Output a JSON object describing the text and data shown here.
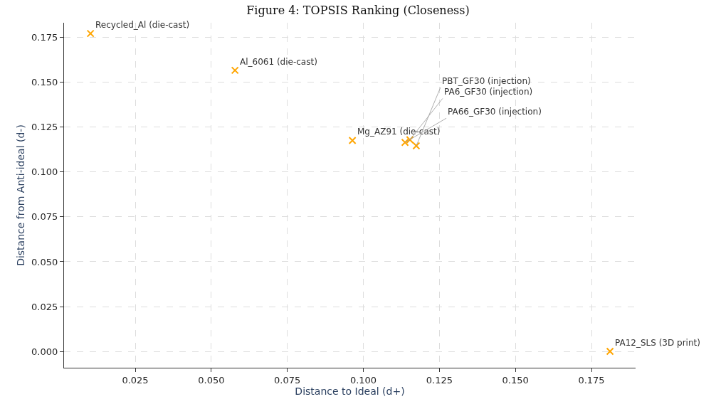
{
  "chart_data": {
    "type": "scatter",
    "title": "Figure 4: TOPSIS Ranking (Closeness)",
    "xlabel": "Distance to Ideal (d+)",
    "ylabel": "Distance from Anti-ideal (d-)",
    "x": [
      0.0103,
      0.0578,
      0.0964,
      0.1137,
      0.1153,
      0.1174,
      0.1811
    ],
    "series": [
      {
        "color": "#ffa500",
        "values": [
          0.1772,
          0.1567,
          0.1176,
          0.1165,
          0.118,
          0.1146,
          0.0
        ]
      }
    ],
    "annotations": [
      {
        "text": "Recycled_Al (die-cast)",
        "x": 0.0103,
        "y": 0.1772
      },
      {
        "text": "Al_6061 (die-cast)",
        "x": 0.0578,
        "y": 0.1567
      },
      {
        "text": "Mg_AZ91 (die-cast)",
        "x": 0.0964,
        "y": 0.1176
      },
      {
        "text": "PA66_GF30 (injection)",
        "x": 0.1137,
        "y": 0.1165
      },
      {
        "text": "PA6_GF30 (injection)",
        "x": 0.1153,
        "y": 0.118
      },
      {
        "text": "PBT_GF30 (injection)",
        "x": 0.1174,
        "y": 0.1146
      },
      {
        "text": "PA12_SLS (3D print)",
        "x": 0.1811,
        "y": 0.0
      }
    ],
    "xlim": [
      0.0016,
      0.1895
    ],
    "ylim": [
      -0.0091,
      0.1832
    ],
    "xticks": [
      {
        "value": 0.025,
        "label": "0.025"
      },
      {
        "value": 0.05,
        "label": "0.050"
      },
      {
        "value": 0.075,
        "label": "0.075"
      },
      {
        "value": 0.1,
        "label": "0.100"
      },
      {
        "value": 0.125,
        "label": "0.125"
      },
      {
        "value": 0.15,
        "label": "0.150"
      },
      {
        "value": 0.175,
        "label": "0.175"
      }
    ],
    "yticks": [
      {
        "value": 0.0,
        "label": "0.000"
      },
      {
        "value": 0.025,
        "label": "0.025"
      },
      {
        "value": 0.05,
        "label": "0.050"
      },
      {
        "value": 0.075,
        "label": "0.075"
      },
      {
        "value": 0.1,
        "label": "0.100"
      },
      {
        "value": 0.125,
        "label": "0.125"
      },
      {
        "value": 0.15,
        "label": "0.150"
      },
      {
        "value": 0.175,
        "label": "0.175"
      }
    ],
    "grid": true,
    "marker": "cross"
  }
}
